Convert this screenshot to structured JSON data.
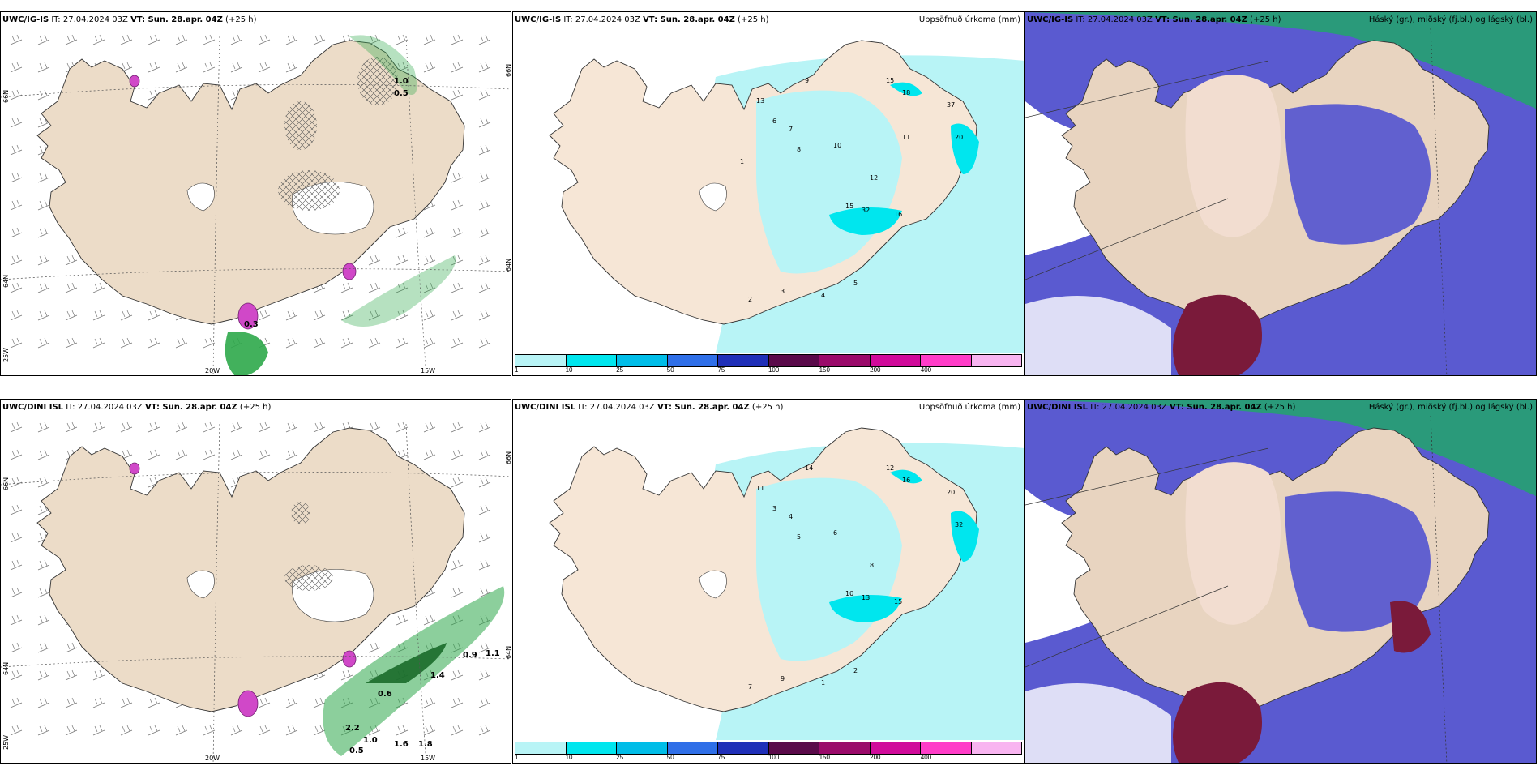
{
  "panels": [
    {
      "model": "UWC/IG-IS",
      "it": "IT: 27.04.2024 03Z",
      "vt": "VT: Sun. 28.apr. 04Z",
      "lead": "(+25 h)",
      "right_title": ""
    },
    {
      "model": "UWC/IG-IS",
      "it": "IT: 27.04.2024 03Z",
      "vt": "VT: Sun. 28.apr. 04Z",
      "lead": "(+25 h)",
      "right_title": "Uppsöfnuð úrkoma (mm)"
    },
    {
      "model": "UWC/IG-IS",
      "it": "IT: 27.04.2024 03Z",
      "vt": "VT: Sun. 28.apr. 04Z",
      "lead": "(+25 h)",
      "right_title": "Háský (gr.), miðský (fj.bl.) og lágský (bl.)"
    },
    {
      "model": "UWC/DINI ISL",
      "it": "IT: 27.04.2024 03Z",
      "vt": "VT: Sun. 28.apr. 04Z",
      "lead": "(+25 h)",
      "right_title": ""
    },
    {
      "model": "UWC/DINI ISL",
      "it": "IT: 27.04.2024 03Z",
      "vt": "VT: Sun. 28.apr. 04Z",
      "lead": "(+25 h)",
      "right_title": "Uppsöfnuð úrkoma (mm)"
    },
    {
      "model": "UWC/DINI ISL",
      "it": "IT: 27.04.2024 03Z",
      "vt": "VT: Sun. 28.apr. 04Z",
      "lead": "(+25 h)",
      "right_title": "Háský (gr.), miðský (fj.bl.) og lágský (bl.)"
    }
  ],
  "axis_labels": {
    "lat66": "66N",
    "lat64": "64N",
    "lon25": "25W",
    "lon20": "20W",
    "lon15": "15W"
  },
  "colorbar": {
    "ticks": [
      "1",
      "10",
      "25",
      "50",
      "75",
      "100",
      "150",
      "200",
      "400",
      ""
    ],
    "colors": [
      "#b8f4f6",
      "#00e6ee",
      "#00bde8",
      "#2f6fe8",
      "#1f2fb8",
      "#5a0a4a",
      "#9a0a6a",
      "#d00a9a",
      "#ff3cc8",
      "#f8b4f0"
    ]
  },
  "precip_labels_top": [
    "9",
    "13",
    "15",
    "18",
    "20",
    "37",
    "32",
    "16",
    "15",
    "12",
    "10",
    "8",
    "7",
    "6",
    "5",
    "4",
    "3",
    "2",
    "1",
    "11"
  ],
  "precip_labels_bottom": [
    "14",
    "11",
    "12",
    "16",
    "32",
    "20",
    "13",
    "15",
    "10",
    "8",
    "6",
    "5",
    "4",
    "3",
    "2",
    "1",
    "9",
    "7"
  ],
  "snow_labels_top": [
    "1.0",
    "0.5",
    "0.3"
  ],
  "snow_labels_bottom": [
    "0.9",
    "1.1",
    "1.4",
    "0.6",
    "2.2",
    "1.0",
    "1.6",
    "1.8",
    "0.5"
  ],
  "colors": {
    "land": "#ecdcc8",
    "sea_fill": "#b7f3f5",
    "cloud_high": "#2a9a7a",
    "cloud_mid": "#5a5ad0",
    "cloud_low": "#7a1a3a",
    "snow_green": "#2ea84a",
    "snow_pink": "#d048c8"
  }
}
